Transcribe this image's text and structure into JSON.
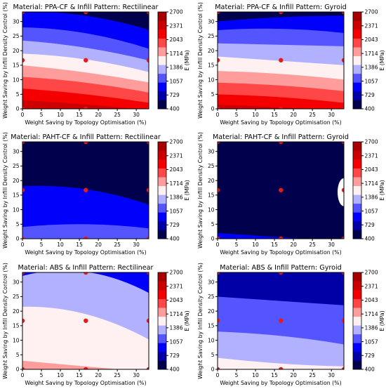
{
  "chart_data": {
    "type": "heatmap",
    "colorbar": {
      "label": "E (MPa)",
      "ticks": [
        400,
        729,
        1057,
        1386,
        1714,
        2043,
        2371,
        2700
      ],
      "range": [
        400,
        2700
      ],
      "colormap": "seismic",
      "colors": [
        "#00004c",
        "#0000a6",
        "#0000fb",
        "#5555ff",
        "#b1b1ff",
        "#fff1f1",
        "#ff9d9d",
        "#ff4747",
        "#f40000",
        "#cc0000",
        "#a70000"
      ]
    },
    "axes": {
      "xlabel": "Weight Saving by Topology Optimisation (%)",
      "ylabel": "Weight Saving by Infill Density Control (%)",
      "xlim": [
        0,
        33.3
      ],
      "ylim": [
        0,
        33.3
      ],
      "xticks": [
        0,
        5,
        10,
        15,
        20,
        25,
        30
      ],
      "yticks": [
        0,
        5,
        10,
        15,
        20,
        25,
        30
      ],
      "grid": false
    },
    "sample_points": [
      [
        0,
        0
      ],
      [
        16.7,
        0
      ],
      [
        33.3,
        0
      ],
      [
        0,
        16.7
      ],
      [
        16.7,
        16.7
      ],
      [
        33.3,
        16.7
      ],
      [
        0,
        33.3
      ],
      [
        16.7,
        33.3
      ],
      [
        33.3,
        33.3
      ]
    ],
    "panels": [
      {
        "title": "Material: PPA-CF & Infill Pattern: Rectilinear",
        "levels": [
          {
            "level": 1,
            "y_left": 35,
            "y_mid": 35,
            "y_right": 33.5
          },
          {
            "level": 2,
            "y_left": 33.5,
            "y_mid": 32,
            "y_right": 27
          },
          {
            "level": 3,
            "y_left": 28,
            "y_mid": 26,
            "y_right": 20.5
          },
          {
            "level": 4,
            "y_left": 23.5,
            "y_mid": 21,
            "y_right": 16.5
          },
          {
            "level": 5,
            "y_left": 19,
            "y_mid": 17,
            "y_right": 12.5
          },
          {
            "level": 6,
            "y_left": 15,
            "y_mid": 12.5,
            "y_right": 9
          },
          {
            "level": 7,
            "y_left": 11,
            "y_mid": 9,
            "y_right": 5.5
          },
          {
            "level": 8,
            "y_left": 7,
            "y_mid": 5,
            "y_right": 2
          },
          {
            "level": 9,
            "y_left": 3,
            "y_mid": 1.5,
            "y_right": -0.5
          }
        ]
      },
      {
        "title": "Material: PPA-CF & Infill Pattern: Gyroid",
        "levels": [
          {
            "level": 1,
            "y_left": 35,
            "y_mid": 35,
            "y_right": 35
          },
          {
            "level": 2,
            "y_left": 30,
            "y_mid": 31.5,
            "y_right": 32
          },
          {
            "level": 3,
            "y_left": 27,
            "y_mid": 27.5,
            "y_right": 26
          },
          {
            "level": 4,
            "y_left": 22.5,
            "y_mid": 22,
            "y_right": 21.5
          },
          {
            "level": 5,
            "y_left": 18,
            "y_mid": 16.5,
            "y_right": 15
          },
          {
            "level": 6,
            "y_left": 13,
            "y_mid": 12,
            "y_right": 10
          },
          {
            "level": 7,
            "y_left": 9,
            "y_mid": 8,
            "y_right": 6
          },
          {
            "level": 8,
            "y_left": 5,
            "y_mid": 4,
            "y_right": 2
          },
          {
            "level": 9,
            "y_left": 1.5,
            "y_mid": 0.5,
            "y_right": -0.5
          }
        ]
      },
      {
        "title": "Material: PAHT-CF & Infill Pattern: Rectilinear",
        "levels": [
          {
            "level": 1,
            "y_left": 26,
            "y_mid": 24,
            "y_right": 18
          },
          {
            "level": 2,
            "y_left": 18,
            "y_mid": 17,
            "y_right": 11.5
          },
          {
            "level": 3,
            "y_left": 4,
            "y_mid": 5,
            "y_right": 3.5
          }
        ]
      },
      {
        "title": "Material: PAHT-CF & Infill Pattern: Gyroid",
        "levels": [
          {
            "level": 1,
            "y_left": 19,
            "y_mid": 27,
            "y_right": 10
          },
          {
            "level": 2,
            "y_left": 2,
            "y_mid": 0.5,
            "y_right": -1
          }
        ]
      },
      {
        "title": "Material: ABS & Infill Pattern: Rectilinear",
        "levels": [
          {
            "level": 3,
            "y_left": 35,
            "y_mid": 35,
            "y_right": 34
          },
          {
            "level": 4,
            "y_left": 32,
            "y_mid": 33.5,
            "y_right": 26
          },
          {
            "level": 5,
            "y_left": 21.5,
            "y_mid": 19,
            "y_right": 10
          },
          {
            "level": 6,
            "y_left": 3,
            "y_mid": 1,
            "y_right": -1
          }
        ]
      },
      {
        "title": "Material: ABS & Infill Pattern: Gyroid",
        "levels": [
          {
            "level": 2,
            "y_left": 30.5,
            "y_mid": 32,
            "y_right": 26.5
          },
          {
            "level": 3,
            "y_left": 25,
            "y_mid": 23.5,
            "y_right": 22
          },
          {
            "level": 4,
            "y_left": 13,
            "y_mid": 11.5,
            "y_right": 8.5
          },
          {
            "level": 5,
            "y_left": 4,
            "y_mid": 2,
            "y_right": 1
          }
        ]
      }
    ]
  }
}
